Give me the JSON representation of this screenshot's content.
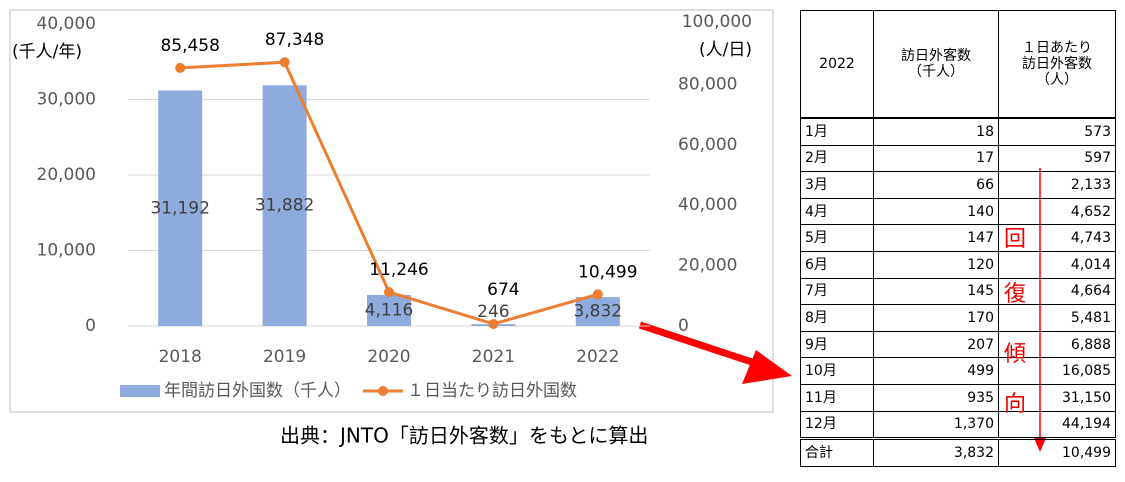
{
  "chart_data": {
    "type": "bar",
    "categories": [
      "2018",
      "2019",
      "2020",
      "2021",
      "2022"
    ],
    "series": [
      {
        "name": "年間訪日外国数（千人）",
        "type": "bar",
        "color": "#8faadc",
        "values": [
          31192,
          31882,
          4116,
          246,
          3832
        ],
        "value_labels": [
          "31,192",
          "31,882",
          "4,116",
          "246",
          "3,832"
        ]
      },
      {
        "name": "１日当たり訪日外国数",
        "type": "line",
        "axis": "y2",
        "color": "#ed7d31",
        "values": [
          85458,
          87348,
          11246,
          674,
          10499
        ],
        "value_labels": [
          "85,458",
          "87,348",
          "11,246",
          "674",
          "10,499"
        ]
      }
    ],
    "ylabel": "(千人/年)",
    "y2label": "(人/日)",
    "ylim": [
      0,
      40000
    ],
    "yticks": [
      0,
      {
        "value": 10000,
        "label": "10,000"
      },
      {
        "value": 20000,
        "label": "20,000"
      },
      {
        "value": 30000,
        "label": "30,000"
      },
      {
        "value": 40000,
        "label": "40,000"
      }
    ],
    "y2lim": [
      0,
      100000
    ],
    "y2ticks": [
      0,
      {
        "value": 20000,
        "label": "20,000"
      },
      {
        "value": 40000,
        "label": "40,000"
      },
      {
        "value": 60000,
        "label": "60,000"
      },
      {
        "value": 80000,
        "label": "80,000"
      },
      {
        "value": 100000,
        "label": "100,000"
      }
    ],
    "grid": true,
    "legend": "bottom"
  },
  "source": "出典：JNTO「訪日外客数」をもとに算出",
  "table": {
    "header": [
      [
        "2022"
      ],
      [
        "訪日外客数",
        "（千人）"
      ],
      [
        "１日あたり",
        "訪日外客数",
        "（人）"
      ]
    ],
    "rows": [
      [
        "1月",
        "18",
        "573"
      ],
      [
        "2月",
        "17",
        "597"
      ],
      [
        "3月",
        "66",
        "2,133"
      ],
      [
        "4月",
        "140",
        "4,652"
      ],
      [
        "5月",
        "147",
        "4,743"
      ],
      [
        "6月",
        "120",
        "4,014"
      ],
      [
        "7月",
        "145",
        "4,664"
      ],
      [
        "8月",
        "170",
        "5,481"
      ],
      [
        "9月",
        "207",
        "6,888"
      ],
      [
        "10月",
        "499",
        "16,085"
      ],
      [
        "11月",
        "935",
        "31,150"
      ],
      [
        "12月",
        "1,370",
        "44,194"
      ]
    ],
    "total": [
      "合計",
      "3,832",
      "10,499"
    ],
    "annotation": [
      "回",
      "復",
      "傾",
      "向"
    ]
  }
}
